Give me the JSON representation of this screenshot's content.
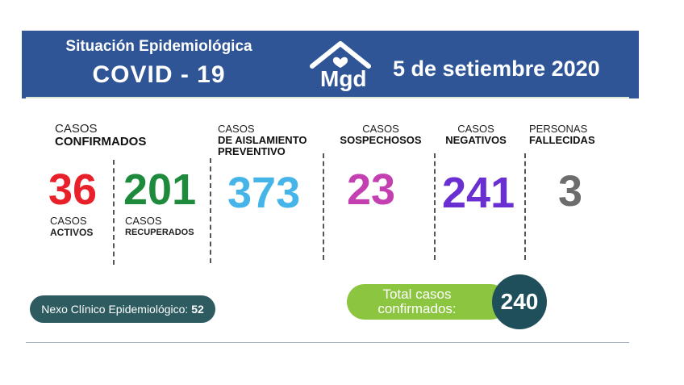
{
  "header": {
    "title_line1": "Situación Epidemiológica",
    "title_line2": "COVID - 19",
    "logo_text": "Mgd",
    "date": "5 de setiembre 2020",
    "bg_color": "#2f5597"
  },
  "stats": {
    "confirmados": {
      "label_top": "CASOS",
      "label_bold": "CONFIRMADOS"
    },
    "activos": {
      "value": "36",
      "label_top": "CASOS",
      "label_bold": "ACTIVOS",
      "color": "#e8202a"
    },
    "recuperados": {
      "value": "201",
      "label_top": "CASOS",
      "label_bold": "RECUPERADOS",
      "color": "#1e8a3c"
    },
    "aislamiento": {
      "value": "373",
      "label_top": "CASOS",
      "label_bold": "DE AISLAMIENTO PREVENTIVO",
      "color": "#45b4e8"
    },
    "sospechosos": {
      "value": "23",
      "label_top": "CASOS",
      "label_bold": "SOSPECHOSOS",
      "color": "#c43fb0"
    },
    "negativos": {
      "value": "241",
      "label_top": "CASOS",
      "label_bold": "NEGATIVOS",
      "color": "#6a2fd1"
    },
    "fallecidas": {
      "value": "3",
      "label_top": "PERSONAS",
      "label_bold": "FALLECIDAS",
      "color": "#6d6d6d"
    }
  },
  "nexo": {
    "label": "Nexo Clínico Epidemiológico:",
    "value": "52"
  },
  "total": {
    "label_line1": "Total casos",
    "label_line2": "confirmados:",
    "value": "240"
  }
}
